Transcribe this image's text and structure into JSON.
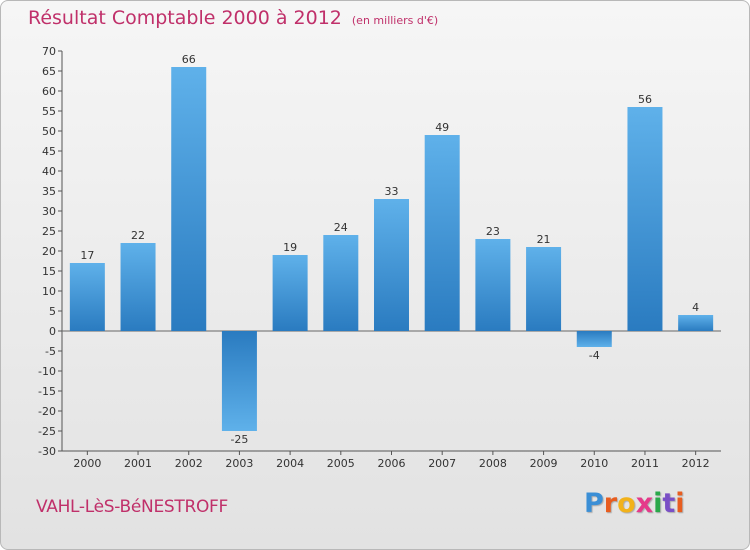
{
  "header": {
    "title": "Résultat Comptable 2000 à 2012",
    "subtitle": "(en milliers d'€)"
  },
  "footer": {
    "city": "VAHL-LèS-BéNESTROFF",
    "logo": [
      "P",
      "r",
      "o",
      "x",
      "i",
      "t",
      "i"
    ]
  },
  "colors": {
    "title": "#c0306a",
    "bar_light": "#5fb1ea",
    "bar_dark": "#2a7bc0"
  },
  "chart_data": {
    "type": "bar",
    "title": "Résultat Comptable 2000 à 2012",
    "subtitle": "(en milliers d'€)",
    "categories": [
      "2000",
      "2001",
      "2002",
      "2003",
      "2004",
      "2005",
      "2006",
      "2007",
      "2008",
      "2009",
      "2010",
      "2011",
      "2012"
    ],
    "values": [
      17,
      22,
      66,
      -25,
      19,
      24,
      33,
      49,
      23,
      21,
      -4,
      56,
      4
    ],
    "ylim": [
      -30,
      70
    ],
    "yticks": [
      -30,
      -25,
      -20,
      -15,
      -10,
      -5,
      0,
      5,
      10,
      15,
      20,
      25,
      30,
      35,
      40,
      45,
      50,
      55,
      60,
      65,
      70
    ],
    "grid": false,
    "xlabel": "",
    "ylabel": ""
  }
}
